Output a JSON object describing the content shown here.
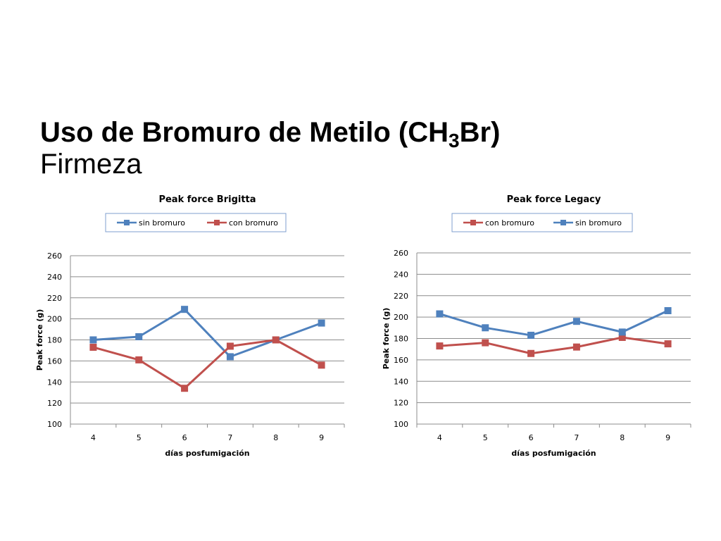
{
  "slide": {
    "title_main": "Uso de Bromuro de Metilo (CH",
    "title_sub": "3",
    "title_end": "Br)",
    "subtitle": "Firmeza"
  },
  "colors": {
    "blue": "#4f81bd",
    "red": "#c0504d",
    "grid": "#8c8c8c",
    "legend_border": "#7f9fcf"
  },
  "chart_data": [
    {
      "type": "line",
      "title": "Peak force Brigitta",
      "xlabel": "días posfumigación",
      "ylabel": "Peak force (g)",
      "categories": [
        "4",
        "5",
        "6",
        "7",
        "8",
        "9"
      ],
      "ylim": [
        100,
        260
      ],
      "yticks": [
        100,
        120,
        140,
        160,
        180,
        200,
        220,
        240,
        260
      ],
      "grid": true,
      "legend_position": "top",
      "series": [
        {
          "name": "sin bromuro",
          "color": "#4f81bd",
          "values": [
            180,
            183,
            209,
            164,
            180,
            196
          ]
        },
        {
          "name": "con bromuro",
          "color": "#c0504d",
          "values": [
            173,
            161,
            134,
            174,
            180,
            156
          ]
        }
      ]
    },
    {
      "type": "line",
      "title": "Peak force Legacy",
      "xlabel": "días posfumigación",
      "ylabel": "Peak force (g)",
      "categories": [
        "4",
        "5",
        "6",
        "7",
        "8",
        "9"
      ],
      "ylim": [
        100,
        260
      ],
      "yticks": [
        100,
        120,
        140,
        160,
        180,
        200,
        220,
        240,
        260
      ],
      "grid": true,
      "legend_position": "top",
      "series": [
        {
          "name": "con bromuro",
          "color": "#c0504d",
          "values": [
            173,
            176,
            166,
            172,
            181,
            175
          ]
        },
        {
          "name": "sin bromuro",
          "color": "#4f81bd",
          "values": [
            203,
            190,
            183,
            196,
            186,
            206
          ]
        }
      ]
    }
  ]
}
